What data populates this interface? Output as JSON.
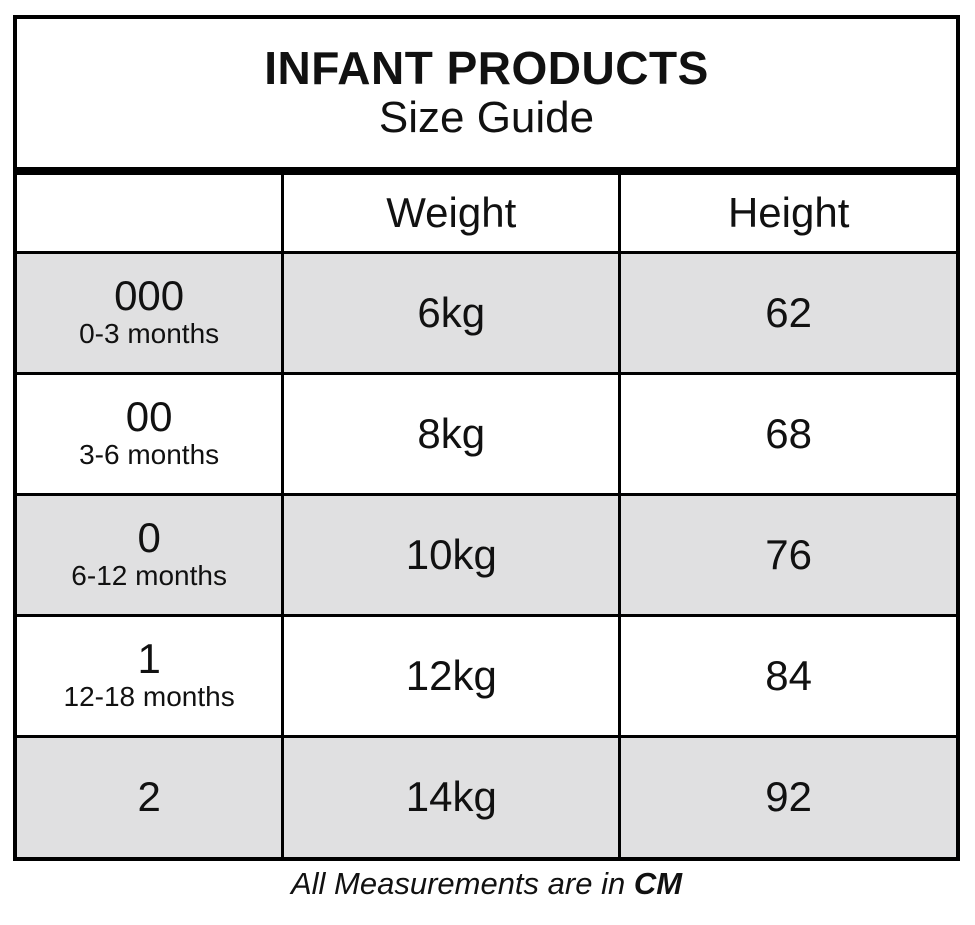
{
  "title": {
    "line1": "INFANT PRODUCTS",
    "line2": "Size Guide"
  },
  "table": {
    "columns": [
      "",
      "Weight",
      "Height"
    ],
    "rows": [
      {
        "size": "000",
        "age": "0-3 months",
        "weight": "6kg",
        "height": "62",
        "shaded": true
      },
      {
        "size": "00",
        "age": "3-6 months",
        "weight": "8kg",
        "height": "68",
        "shaded": false
      },
      {
        "size": "0",
        "age": "6-12 months",
        "weight": "10kg",
        "height": "76",
        "shaded": true
      },
      {
        "size": "1",
        "age": "12-18 months",
        "weight": "12kg",
        "height": "84",
        "shaded": false
      },
      {
        "size": "2",
        "age": "",
        "weight": "14kg",
        "height": "92",
        "shaded": true
      }
    ]
  },
  "footer": {
    "prefix": "All Measurements are in ",
    "unit": "CM"
  },
  "colors": {
    "shaded_row": "#e0e0e1",
    "border": "#000000",
    "background": "#ffffff",
    "text": "#111111"
  }
}
